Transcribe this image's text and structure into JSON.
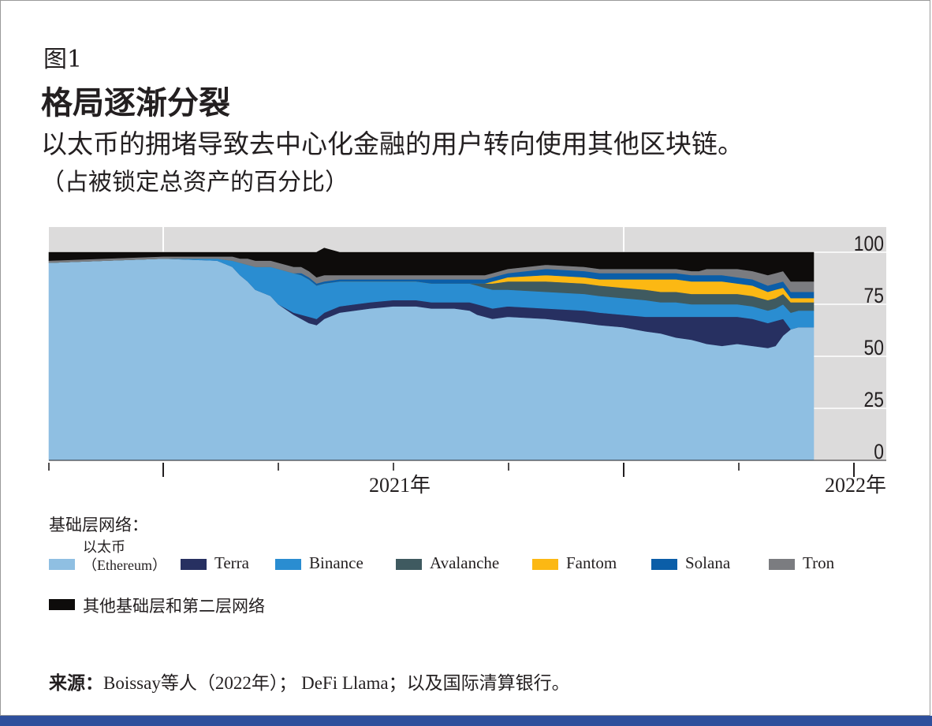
{
  "figure_label": "图1",
  "title": "格局逐渐分裂",
  "subtitle": "以太币的拥堵导致去中心化金融的用户转向使用其他区块链。",
  "unit_note": "（占被锁定总资产的百分比）",
  "legend_heading": "基础层网络：",
  "legend": [
    {
      "line1": "以太币",
      "line2": "（Ethereum）",
      "color": "#8fbfe2"
    },
    {
      "label": "Terra",
      "color": "#273061"
    },
    {
      "label": "Binance",
      "color": "#2a8dd1"
    },
    {
      "label": "Avalanche",
      "color": "#3f5a60"
    },
    {
      "label": "Fantom",
      "color": "#fcb813"
    },
    {
      "label": "Solana",
      "color": "#0b5ea8"
    },
    {
      "label": "Tron",
      "color": "#7b7c80"
    },
    {
      "label": "其他基础层和第二层网络",
      "color": "#0e0c0b"
    }
  ],
  "source_label": "来源：",
  "source_text": "Boissay等人（2022年）； DeFi Llama；以及国际清算银行。",
  "chart_data": {
    "type": "area",
    "stacked": true,
    "xlabel": "",
    "ylabel": "",
    "x_tick_labels": [
      "2021年",
      "2022年"
    ],
    "y_ticks": [
      0,
      25,
      50,
      75,
      100
    ],
    "ylim": [
      0,
      100
    ],
    "y_axis_position": "right",
    "grid": true,
    "legend_position": "bottom",
    "x": [
      0,
      0.15,
      0.22,
      0.24,
      0.25,
      0.26,
      0.27,
      0.29,
      0.3,
      0.32,
      0.33,
      0.34,
      0.35,
      0.36,
      0.38,
      0.4,
      0.42,
      0.45,
      0.48,
      0.5,
      0.53,
      0.55,
      0.56,
      0.57,
      0.58,
      0.6,
      0.65,
      0.7,
      0.72,
      0.75,
      0.78,
      0.8,
      0.82,
      0.84,
      0.85,
      0.86,
      0.88,
      0.9,
      0.92,
      0.94,
      0.95,
      0.96,
      0.97,
      0.98,
      1
    ],
    "series": [
      {
        "name": "以太币（Ethereum）",
        "values": [
          95,
          97,
          96,
          93,
          89,
          86,
          82,
          79,
          75,
          70,
          68,
          66,
          65,
          68,
          71,
          72,
          73,
          74,
          74,
          73,
          73,
          72,
          70,
          69,
          68,
          69,
          68,
          66,
          65,
          64,
          62,
          61,
          59,
          58,
          57,
          56,
          55,
          56,
          55,
          54,
          55,
          60,
          63,
          64,
          64
        ]
      },
      {
        "name": "Terra",
        "values": [
          0,
          0,
          0,
          0,
          0,
          0,
          0,
          0,
          0,
          1,
          2,
          3,
          3,
          3,
          3,
          3,
          3,
          3,
          3,
          3,
          3,
          4,
          5,
          5,
          5,
          5,
          5,
          6,
          6,
          6,
          7,
          8,
          10,
          11,
          12,
          13,
          14,
          13,
          13,
          12,
          12,
          8,
          0,
          0,
          0
        ]
      },
      {
        "name": "Binance",
        "values": [
          0,
          0,
          1,
          3,
          6,
          8,
          11,
          14,
          17,
          19,
          19,
          18,
          16,
          14,
          12,
          11,
          10,
          9,
          9,
          9,
          9,
          9,
          9,
          9,
          9,
          8,
          8,
          8,
          8,
          8,
          8,
          7,
          7,
          6,
          6,
          6,
          6,
          6,
          6,
          6,
          6,
          7,
          8,
          8,
          8
        ]
      },
      {
        "name": "Avalanche",
        "values": [
          0,
          0,
          0,
          0,
          0,
          0,
          0,
          0,
          0,
          0,
          0,
          0,
          0,
          0,
          0,
          0,
          0,
          0,
          0,
          0,
          0,
          0,
          1,
          2,
          3,
          4,
          5,
          5,
          5,
          5,
          5,
          5,
          5,
          5,
          5,
          5,
          5,
          5,
          5,
          5,
          5,
          5,
          5,
          4,
          4
        ]
      },
      {
        "name": "Fantom",
        "values": [
          0,
          0,
          0,
          0,
          0,
          0,
          0,
          0,
          0,
          0,
          0,
          0,
          0,
          0,
          0,
          0,
          0,
          0,
          0,
          0,
          0,
          0,
          0,
          0,
          1,
          2,
          3,
          3,
          3,
          4,
          5,
          6,
          6,
          6,
          6,
          6,
          6,
          5,
          5,
          4,
          4,
          3,
          2,
          2,
          2
        ]
      },
      {
        "name": "Solana",
        "values": [
          0,
          0,
          0,
          0,
          0,
          0,
          0,
          0,
          0,
          0,
          1,
          1,
          1,
          1,
          1,
          1,
          1,
          1,
          1,
          2,
          2,
          2,
          2,
          2,
          2,
          2,
          3,
          3,
          3,
          3,
          3,
          3,
          3,
          3,
          3,
          3,
          3,
          3,
          3,
          3,
          3,
          3,
          3,
          3,
          3
        ]
      },
      {
        "name": "Tron",
        "values": [
          1,
          1,
          1,
          2,
          2,
          3,
          3,
          3,
          3,
          3,
          3,
          3,
          3,
          3,
          2,
          2,
          2,
          2,
          2,
          2,
          2,
          2,
          2,
          2,
          2,
          2,
          2,
          2,
          2,
          2,
          2,
          2,
          2,
          2,
          2,
          3,
          3,
          4,
          4,
          5,
          5,
          5,
          5,
          5,
          5
        ]
      },
      {
        "name": "其他基础层和第二层网络",
        "values": [
          4,
          2,
          2,
          2,
          3,
          3,
          4,
          4,
          5,
          7,
          7,
          9,
          12,
          13,
          11,
          11,
          11,
          11,
          11,
          11,
          11,
          11,
          11,
          11,
          10,
          8,
          6,
          7,
          8,
          8,
          8,
          8,
          8,
          9,
          9,
          8,
          8,
          8,
          9,
          11,
          10,
          9,
          14,
          14,
          14
        ]
      }
    ]
  }
}
